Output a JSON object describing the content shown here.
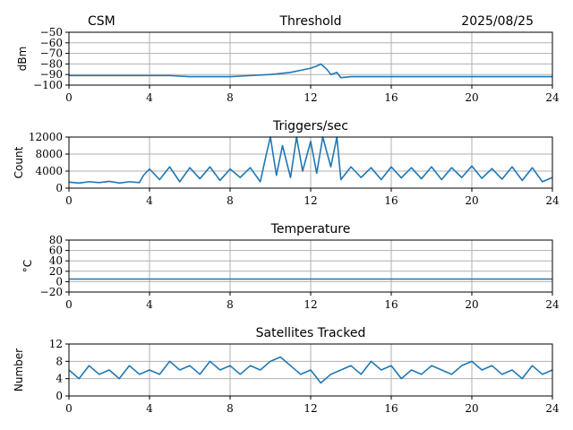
{
  "header": {
    "left_text": "CSM",
    "right_text": "2025/08/25"
  },
  "colors": {
    "series": "#1f77b4",
    "grid": "#b0b0b0",
    "axis": "#000000"
  },
  "chart_data": [
    {
      "type": "line",
      "title": "Threshold",
      "ylabel": "dBm",
      "xlim": [
        0,
        24
      ],
      "ylim": [
        -100,
        -50
      ],
      "xticks": [
        0,
        4,
        8,
        12,
        16,
        20,
        24
      ],
      "yticks": [
        -100,
        -90,
        -80,
        -70,
        -60,
        -50
      ],
      "grid": true,
      "series": [
        {
          "x": [
            0,
            1,
            2,
            3,
            4,
            5,
            6,
            7,
            8,
            9,
            10,
            10.5,
            11,
            11.5,
            12,
            12.3,
            12.5,
            12.8,
            13,
            13.3,
            13.5,
            14,
            15,
            16,
            17,
            18,
            19,
            20,
            21,
            22,
            23,
            24
          ],
          "y": [
            -91,
            -91,
            -91,
            -91,
            -91,
            -91,
            -92,
            -92,
            -92,
            -91,
            -90,
            -89,
            -88,
            -86,
            -84,
            -82,
            -80,
            -85,
            -90,
            -88,
            -93,
            -92,
            -92,
            -92,
            -92,
            -92,
            -92,
            -92,
            -92,
            -92,
            -92,
            -92
          ]
        }
      ]
    },
    {
      "type": "line",
      "title": "Triggers/sec",
      "ylabel": "Count",
      "xlim": [
        0,
        24
      ],
      "ylim": [
        0,
        12000
      ],
      "xticks": [
        0,
        4,
        8,
        12,
        16,
        20,
        24
      ],
      "yticks": [
        0,
        4000,
        8000,
        12000
      ],
      "grid": true,
      "series": [
        {
          "x": [
            0,
            0.5,
            1,
            1.5,
            2,
            2.5,
            3,
            3.5,
            3.7,
            4,
            4.5,
            5,
            5.5,
            6,
            6.5,
            7,
            7.5,
            8,
            8.5,
            9,
            9.5,
            9.8,
            10,
            10.3,
            10.6,
            11,
            11.3,
            11.6,
            12,
            12.3,
            12.6,
            13,
            13.3,
            13.5,
            14,
            14.5,
            15,
            15.5,
            16,
            16.5,
            17,
            17.5,
            18,
            18.5,
            19,
            19.5,
            20,
            20.5,
            21,
            21.5,
            22,
            22.5,
            23,
            23.5,
            24
          ],
          "y": [
            1400,
            1200,
            1500,
            1300,
            1600,
            1200,
            1500,
            1300,
            3000,
            4500,
            2000,
            5000,
            1500,
            4800,
            2200,
            5000,
            1800,
            4500,
            2500,
            4800,
            1500,
            8000,
            12000,
            3000,
            10000,
            2500,
            12000,
            4000,
            11000,
            3500,
            12000,
            5000,
            12000,
            2000,
            5000,
            2500,
            4800,
            2000,
            5000,
            2400,
            4800,
            2200,
            5000,
            2000,
            4800,
            2500,
            5200,
            2300,
            4600,
            2100,
            5000,
            1800,
            4800,
            1500,
            2500
          ]
        }
      ]
    },
    {
      "type": "line",
      "title": "Temperature",
      "ylabel": "°C",
      "xlim": [
        0,
        24
      ],
      "ylim": [
        -20,
        80
      ],
      "xticks": [
        0,
        4,
        8,
        12,
        16,
        20,
        24
      ],
      "yticks": [
        -20,
        0,
        20,
        40,
        60,
        80
      ],
      "grid": true,
      "series": [
        {
          "x": [
            0,
            24
          ],
          "y": [
            5,
            5
          ]
        }
      ]
    },
    {
      "type": "line",
      "title": "Satellites Tracked",
      "ylabel": "Number",
      "xlim": [
        0,
        24
      ],
      "ylim": [
        0,
        12
      ],
      "xticks": [
        0,
        4,
        8,
        12,
        16,
        20,
        24
      ],
      "yticks": [
        0,
        4,
        8,
        12
      ],
      "grid": true,
      "series": [
        {
          "x": [
            0,
            0.5,
            1,
            1.5,
            2,
            2.5,
            3,
            3.5,
            4,
            4.5,
            5,
            5.5,
            6,
            6.5,
            7,
            7.5,
            8,
            8.5,
            9,
            9.5,
            10,
            10.5,
            11,
            11.5,
            12,
            12.5,
            13,
            13.5,
            14,
            14.5,
            15,
            15.5,
            16,
            16.5,
            17,
            17.5,
            18,
            18.5,
            19,
            19.5,
            20,
            20.5,
            21,
            21.5,
            22,
            22.5,
            23,
            23.5,
            24
          ],
          "y": [
            6,
            4,
            7,
            5,
            6,
            4,
            7,
            5,
            6,
            5,
            8,
            6,
            7,
            5,
            8,
            6,
            7,
            5,
            7,
            6,
            8,
            9,
            7,
            5,
            6,
            3,
            5,
            6,
            7,
            5,
            8,
            6,
            7,
            4,
            6,
            5,
            7,
            6,
            5,
            7,
            8,
            6,
            7,
            5,
            6,
            4,
            7,
            5,
            6
          ]
        }
      ]
    }
  ]
}
